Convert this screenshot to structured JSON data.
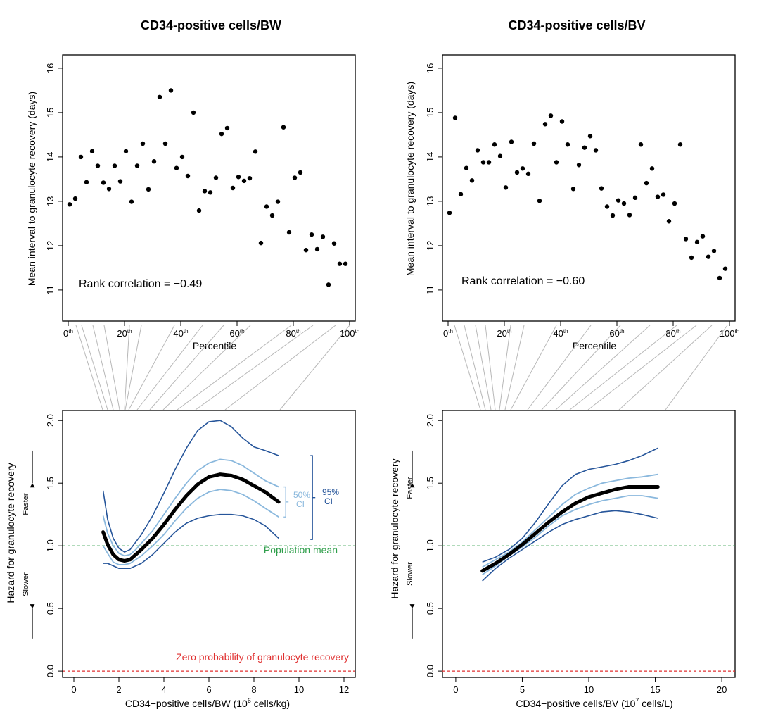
{
  "chart_data": [
    {
      "type": "scatter",
      "panel": "top-left",
      "title": "CD34-positive cells/BW",
      "xlabel": "Percentile",
      "ylabel": "Mean interval to granulocyte recovery (days)",
      "xlim": [
        -2,
        102
      ],
      "ylim": [
        10.3,
        16.3
      ],
      "xticks": [
        0,
        20,
        40,
        60,
        80,
        100
      ],
      "xtick_labels": [
        "0",
        "20",
        "40",
        "60",
        "80",
        "100"
      ],
      "xtick_suffix": "th",
      "yticks": [
        11,
        12,
        13,
        14,
        15,
        16
      ],
      "ytick_labels": [
        "11",
        "12",
        "13",
        "14",
        "15",
        "16"
      ],
      "annotation": "Rank correlation = −0.49",
      "x": [
        0.5,
        2.5,
        4.5,
        6.5,
        8.5,
        10.5,
        12.5,
        14.5,
        16.5,
        18.5,
        20.5,
        22.5,
        24.5,
        26.5,
        28.5,
        30.5,
        32.5,
        34.5,
        36.5,
        38.5,
        40.5,
        42.5,
        44.5,
        46.5,
        48.5,
        50.5,
        52.5,
        54.5,
        56.5,
        58.5,
        60.5,
        62.5,
        64.5,
        66.5,
        68.5,
        70.5,
        72.5,
        74.5,
        76.5,
        78.5,
        80.5,
        82.5,
        84.5,
        86.5,
        88.5,
        90.5,
        92.5,
        94.5,
        96.5,
        98.5
      ],
      "y": [
        12.93,
        13.06,
        14.0,
        13.43,
        14.13,
        13.8,
        13.42,
        13.28,
        13.8,
        13.45,
        14.13,
        12.99,
        13.8,
        14.3,
        13.27,
        13.9,
        15.35,
        14.3,
        15.5,
        13.75,
        14.0,
        13.57,
        15.0,
        12.79,
        13.23,
        13.2,
        13.53,
        14.52,
        14.65,
        13.3,
        13.55,
        13.46,
        13.52,
        14.12,
        12.06,
        12.88,
        12.68,
        12.99,
        14.67,
        12.3,
        13.53,
        13.65,
        11.9,
        12.25,
        11.92,
        12.2,
        11.12,
        12.05,
        11.59,
        11.59
      ]
    },
    {
      "type": "scatter",
      "panel": "top-right",
      "title": "CD34-positive cells/BV",
      "xlabel": "Percentile",
      "ylabel": "Mean interval to granulocyte recovery (days)",
      "xlim": [
        -2,
        102
      ],
      "ylim": [
        10.3,
        16.3
      ],
      "xticks": [
        0,
        20,
        40,
        60,
        80,
        100
      ],
      "xtick_labels": [
        "0",
        "20",
        "40",
        "60",
        "80",
        "100"
      ],
      "xtick_suffix": "th",
      "yticks": [
        11,
        12,
        13,
        14,
        15,
        16
      ],
      "ytick_labels": [
        "11",
        "12",
        "13",
        "14",
        "15",
        "16"
      ],
      "annotation": "Rank correlation = −0.60",
      "x": [
        0.5,
        2.5,
        4.5,
        6.5,
        8.5,
        10.5,
        12.5,
        14.5,
        16.5,
        18.5,
        20.5,
        22.5,
        24.5,
        26.5,
        28.5,
        30.5,
        32.5,
        34.5,
        36.5,
        38.5,
        40.5,
        42.5,
        44.5,
        46.5,
        48.5,
        50.5,
        52.5,
        54.5,
        56.5,
        58.5,
        60.5,
        62.5,
        64.5,
        66.5,
        68.5,
        70.5,
        72.5,
        74.5,
        76.5,
        78.5,
        80.5,
        82.5,
        84.5,
        86.5,
        88.5,
        90.5,
        92.5,
        94.5,
        96.5,
        98.5
      ],
      "y": [
        12.74,
        14.88,
        13.16,
        13.75,
        13.47,
        14.15,
        13.88,
        13.88,
        14.28,
        14.02,
        13.31,
        14.34,
        13.65,
        13.74,
        13.62,
        14.3,
        13.01,
        14.74,
        14.93,
        13.88,
        14.8,
        14.28,
        13.28,
        13.82,
        14.21,
        14.47,
        14.15,
        13.29,
        12.88,
        12.68,
        13.02,
        12.95,
        12.69,
        13.08,
        14.28,
        13.41,
        13.74,
        13.1,
        13.15,
        12.55,
        12.95,
        14.28,
        12.15,
        11.73,
        12.08,
        12.21,
        11.75,
        11.88,
        11.27,
        11.48
      ]
    },
    {
      "type": "line",
      "panel": "bottom-left",
      "xlabel": "CD34−positive cells/BW (10",
      "xlabel_sup": "6",
      "xlabel_end": " cells/kg)",
      "ylabel": "Hazard for granulocyte recovery",
      "xlim": [
        -0.5,
        12.5
      ],
      "ylim": [
        -0.05,
        2.08
      ],
      "xticks": [
        0,
        2,
        4,
        6,
        8,
        10,
        12
      ],
      "xtick_labels": [
        "0",
        "2",
        "4",
        "6",
        "8",
        "10",
        "12"
      ],
      "yticks": [
        0.0,
        0.5,
        1.0,
        1.5,
        2.0
      ],
      "ytick_labels": [
        "0.0",
        "0.5",
        "1.0",
        "1.5",
        "2.0"
      ],
      "x": [
        1.3,
        1.5,
        1.75,
        2.0,
        2.25,
        2.5,
        2.75,
        3.0,
        3.5,
        4.0,
        4.5,
        5.0,
        5.5,
        6.0,
        6.5,
        7.0,
        7.5,
        8.0,
        8.5,
        9.1
      ],
      "estimate": [
        1.11,
        1.01,
        0.93,
        0.89,
        0.88,
        0.89,
        0.93,
        0.97,
        1.06,
        1.17,
        1.29,
        1.4,
        1.49,
        1.55,
        1.57,
        1.56,
        1.53,
        1.48,
        1.43,
        1.35
      ],
      "ci50_upper": [
        1.24,
        1.1,
        1.0,
        0.94,
        0.92,
        0.93,
        0.97,
        1.02,
        1.12,
        1.25,
        1.38,
        1.5,
        1.6,
        1.66,
        1.69,
        1.68,
        1.64,
        1.58,
        1.52,
        1.47
      ],
      "ci50_lower": [
        1.0,
        0.94,
        0.87,
        0.85,
        0.85,
        0.86,
        0.89,
        0.92,
        1.0,
        1.09,
        1.2,
        1.3,
        1.38,
        1.43,
        1.45,
        1.44,
        1.41,
        1.36,
        1.3,
        1.23
      ],
      "ci95_upper": [
        1.44,
        1.21,
        1.06,
        0.98,
        0.95,
        0.97,
        1.03,
        1.09,
        1.24,
        1.42,
        1.61,
        1.78,
        1.92,
        1.99,
        2.0,
        1.95,
        1.86,
        1.79,
        1.76,
        1.72
      ],
      "ci95_lower": [
        0.86,
        0.86,
        0.84,
        0.82,
        0.82,
        0.82,
        0.84,
        0.86,
        0.93,
        1.02,
        1.11,
        1.18,
        1.22,
        1.24,
        1.25,
        1.25,
        1.24,
        1.21,
        1.16,
        1.06
      ],
      "reference_lines": [
        {
          "y": 1.0,
          "label": "Population mean",
          "color": "#2e9e4a"
        },
        {
          "y": 0.0,
          "label": "Zero probability of granulocyte recovery",
          "color": "#e03030"
        }
      ],
      "ci50_label": [
        "50%",
        "CI"
      ],
      "ci95_label": [
        "95%",
        "CI"
      ],
      "faster_label": "Faster",
      "slower_label": "Slower",
      "colors": {
        "estimate": "#000000",
        "ci50": "#8ab8dd",
        "ci95": "#26559a"
      }
    },
    {
      "type": "line",
      "panel": "bottom-right",
      "xlabel": "CD34−positive cells/BV (10",
      "xlabel_sup": "7",
      "xlabel_end": " cells/L)",
      "ylabel": "Hazard for granulocyte recovery",
      "xlim": [
        -1,
        21
      ],
      "ylim": [
        -0.05,
        2.08
      ],
      "xticks": [
        0,
        5,
        10,
        15,
        20
      ],
      "xtick_labels": [
        "0",
        "5",
        "10",
        "15",
        "20"
      ],
      "yticks": [
        0.0,
        0.5,
        1.0,
        1.5,
        2.0
      ],
      "ytick_labels": [
        "0.0",
        "0.5",
        "1.0",
        "1.5",
        "2.0"
      ],
      "x": [
        2,
        3,
        4,
        5,
        6,
        7,
        8,
        9,
        10,
        11,
        12,
        13,
        14,
        15.2
      ],
      "estimate": [
        0.8,
        0.86,
        0.93,
        1.01,
        1.1,
        1.19,
        1.27,
        1.34,
        1.39,
        1.42,
        1.45,
        1.47,
        1.47,
        1.47
      ],
      "ci50_upper": [
        0.83,
        0.89,
        0.95,
        1.03,
        1.13,
        1.23,
        1.33,
        1.41,
        1.46,
        1.5,
        1.52,
        1.54,
        1.55,
        1.57
      ],
      "ci50_lower": [
        0.77,
        0.84,
        0.92,
        0.99,
        1.07,
        1.16,
        1.24,
        1.29,
        1.33,
        1.36,
        1.38,
        1.4,
        1.4,
        1.38
      ],
      "ci95_upper": [
        0.87,
        0.91,
        0.97,
        1.06,
        1.19,
        1.34,
        1.48,
        1.57,
        1.61,
        1.63,
        1.65,
        1.68,
        1.72,
        1.78
      ],
      "ci95_lower": [
        0.72,
        0.82,
        0.9,
        0.97,
        1.04,
        1.11,
        1.17,
        1.21,
        1.24,
        1.27,
        1.28,
        1.27,
        1.25,
        1.22
      ],
      "reference_lines": [
        {
          "y": 1.0,
          "label": "",
          "color": "#2e9e4a"
        },
        {
          "y": 0.0,
          "label": "",
          "color": "#e03030"
        }
      ],
      "faster_label": "Faster",
      "slower_label": "Slower",
      "colors": {
        "estimate": "#000000",
        "ci50": "#8ab8dd",
        "ci95": "#26559a"
      }
    }
  ]
}
